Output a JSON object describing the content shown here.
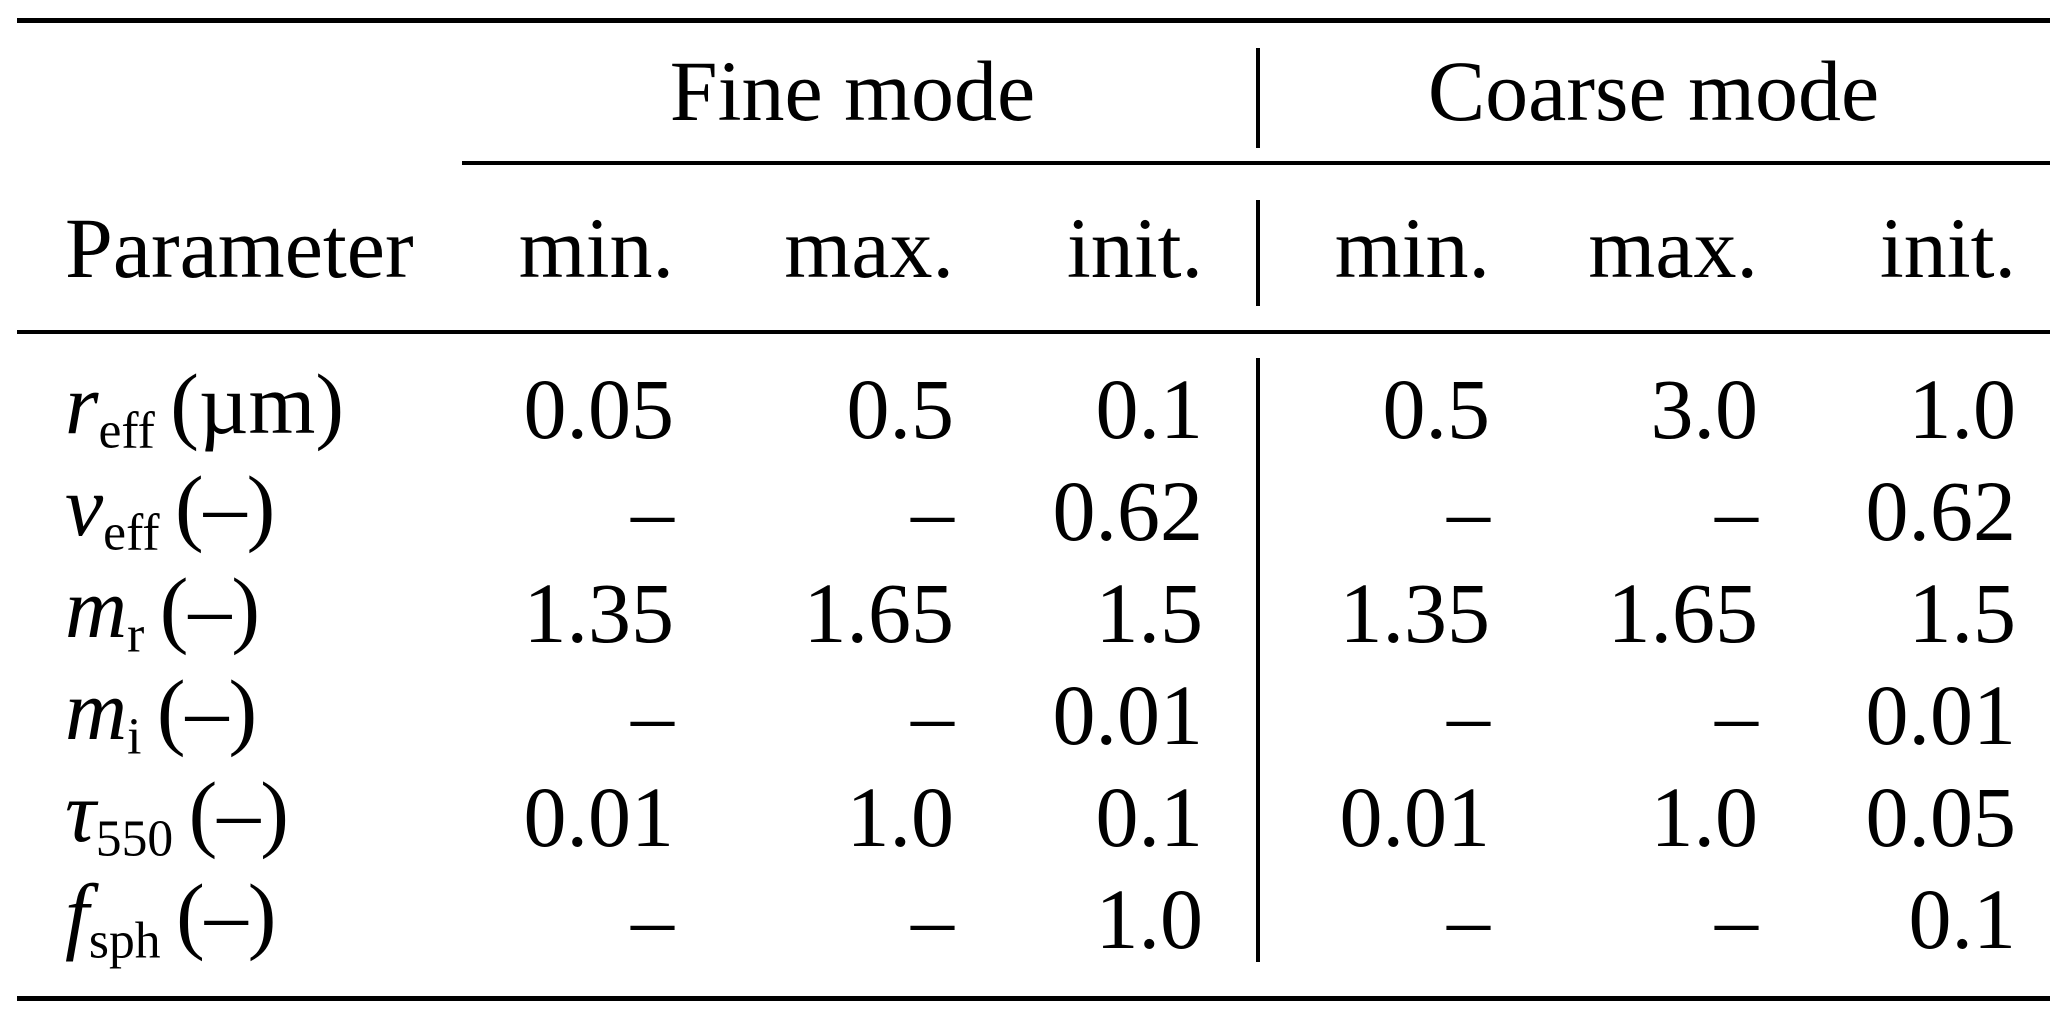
{
  "page": {
    "background": "#ffffff",
    "text_color": "#000000"
  },
  "table": {
    "corner_header": "Parameter",
    "column_groups": [
      {
        "label": "Fine mode",
        "columns": [
          "min.",
          "max.",
          "init."
        ]
      },
      {
        "label": "Coarse mode",
        "columns": [
          "min.",
          "max.",
          "init."
        ]
      }
    ],
    "rows": [
      {
        "symbol": "r",
        "subscript": "eff",
        "unit": "(µm)",
        "fine": {
          "min": "0.05",
          "max": "0.5",
          "init": "0.1"
        },
        "coarse": {
          "min": "0.5",
          "max": "3.0",
          "init": "1.0"
        }
      },
      {
        "symbol": "v",
        "subscript": "eff",
        "unit": "(–)",
        "fine": {
          "min": "–",
          "max": "–",
          "init": "0.62"
        },
        "coarse": {
          "min": "–",
          "max": "–",
          "init": "0.62"
        }
      },
      {
        "symbol": "m",
        "subscript": "r",
        "unit": "(–)",
        "fine": {
          "min": "1.35",
          "max": "1.65",
          "init": "1.5"
        },
        "coarse": {
          "min": "1.35",
          "max": "1.65",
          "init": "1.5"
        }
      },
      {
        "symbol": "m",
        "subscript": "i",
        "unit": "(–)",
        "fine": {
          "min": "–",
          "max": "–",
          "init": "0.01"
        },
        "coarse": {
          "min": "–",
          "max": "–",
          "init": "0.01"
        }
      },
      {
        "symbol": "τ",
        "subscript": "550",
        "unit": "(–)",
        "fine": {
          "min": "0.01",
          "max": "1.0",
          "init": "0.1"
        },
        "coarse": {
          "min": "0.01",
          "max": "1.0",
          "init": "0.05"
        }
      },
      {
        "symbol": "f",
        "subscript": "sph",
        "unit": "(–)",
        "fine": {
          "min": "–",
          "max": "–",
          "init": "1.0"
        },
        "coarse": {
          "min": "–",
          "max": "–",
          "init": "0.1"
        }
      }
    ]
  }
}
